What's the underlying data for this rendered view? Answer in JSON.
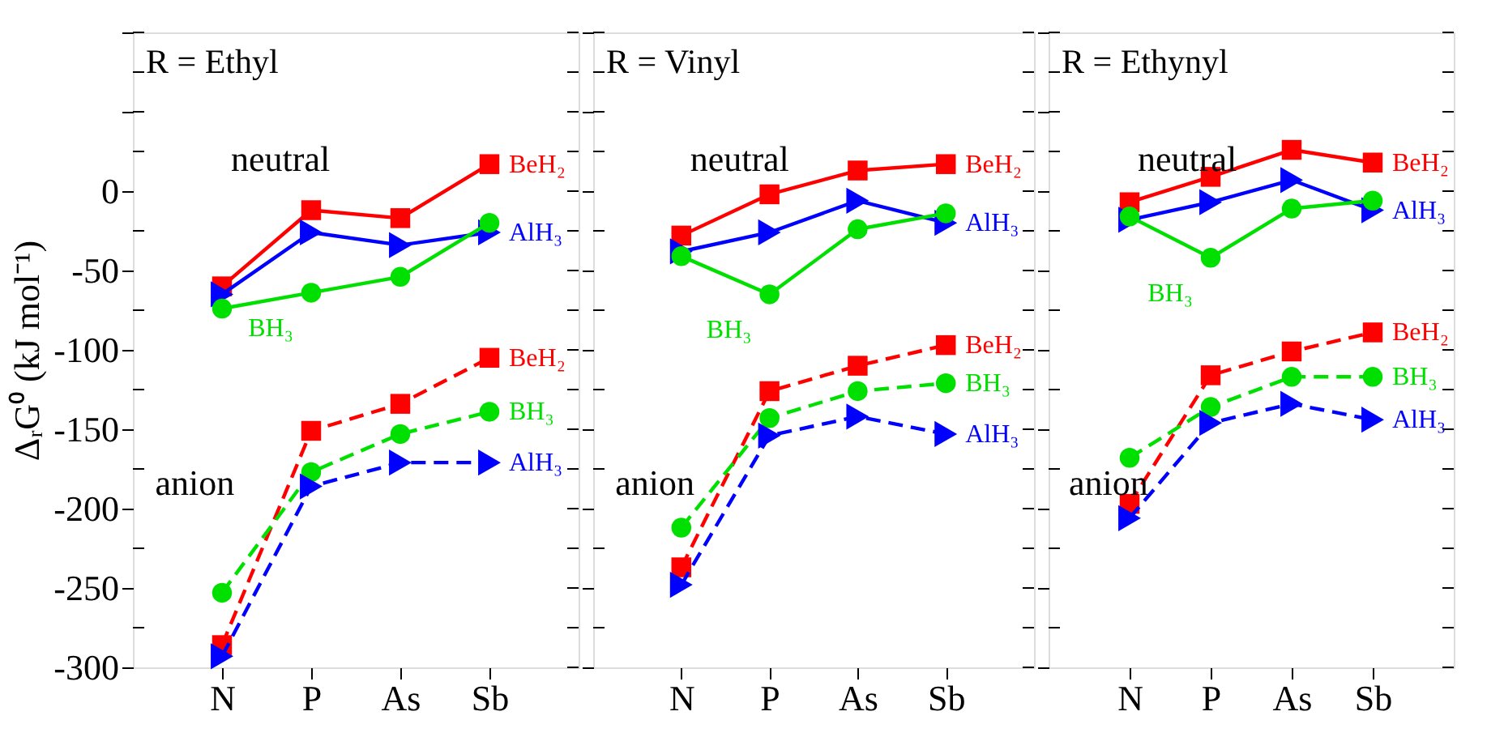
{
  "chart_data": [
    {
      "type": "line",
      "title": "R = Ethyl",
      "ylabel": "ΔᵣG⁰ (kJ mol⁻¹)",
      "categories": [
        "N",
        "P",
        "As",
        "Sb"
      ],
      "ylim": [
        -300,
        100
      ],
      "yticks": [
        -300,
        {
          "value": -275,
          "label": null
        },
        -250,
        {
          "value": -225,
          "label": null
        },
        -200,
        {
          "value": -175,
          "label": null
        },
        -150,
        {
          "value": -125,
          "label": null
        },
        -100,
        {
          "value": -75,
          "label": null
        },
        -50,
        {
          "value": -25,
          "label": null
        },
        0,
        {
          "value": 25,
          "label": null
        },
        {
          "value": 50,
          "label": null
        },
        {
          "value": 75,
          "label": null
        },
        {
          "value": 100,
          "label": null
        }
      ],
      "grid": false,
      "annotations": [
        "neutral",
        "anion"
      ],
      "series": [
        {
          "name": "BeH₂",
          "color": "#ff0000",
          "marker": "square",
          "line_style": "solid",
          "values": [
            -60,
            -12,
            -17,
            17
          ]
        },
        {
          "name": "AlH₃",
          "color": "#0000ff",
          "marker": "triangle",
          "line_style": "solid",
          "values": [
            -65,
            -26,
            -34,
            -26
          ]
        },
        {
          "name": "BH₃",
          "color": "#00e000",
          "marker": "circle",
          "line_style": "solid",
          "values": [
            -74,
            -64,
            -54,
            -20
          ]
        },
        {
          "name": "BeH₂",
          "color": "#ff0000",
          "marker": "square",
          "line_style": "dashed",
          "values": [
            -286,
            -151,
            -134,
            -105
          ]
        },
        {
          "name": "BH₃",
          "color": "#00e000",
          "marker": "circle",
          "line_style": "dashed",
          "values": [
            -253,
            -177,
            -153,
            -139
          ]
        },
        {
          "name": "AlH₃",
          "color": "#0000ff",
          "marker": "triangle",
          "line_style": "dashed",
          "values": [
            -293,
            -186,
            -171,
            -171
          ]
        }
      ]
    },
    {
      "type": "line",
      "title": "R = Vinyl",
      "categories": [
        "N",
        "P",
        "As",
        "Sb"
      ],
      "ylim": [
        -300,
        100
      ],
      "yticks": [
        -300,
        {
          "value": -275,
          "label": null
        },
        -250,
        {
          "value": -225,
          "label": null
        },
        -200,
        {
          "value": -175,
          "label": null
        },
        -150,
        {
          "value": -125,
          "label": null
        },
        -100,
        {
          "value": -75,
          "label": null
        },
        -50,
        {
          "value": -25,
          "label": null
        },
        0,
        {
          "value": 25,
          "label": null
        },
        {
          "value": 50,
          "label": null
        },
        {
          "value": 75,
          "label": null
        },
        {
          "value": 100,
          "label": null
        }
      ],
      "grid": false,
      "tick_labels": "x",
      "annotations": [
        "neutral",
        "anion"
      ],
      "series": [
        {
          "name": "BeH₂",
          "color": "#ff0000",
          "marker": "square",
          "line_style": "solid",
          "values": [
            -28,
            -2,
            13,
            17
          ]
        },
        {
          "name": "AlH₃",
          "color": "#0000ff",
          "marker": "triangle",
          "line_style": "solid",
          "values": [
            -38,
            -26,
            -6,
            -20
          ]
        },
        {
          "name": "BH₃",
          "color": "#00e000",
          "marker": "circle",
          "line_style": "solid",
          "values": [
            -41,
            -65,
            -24,
            -14
          ]
        },
        {
          "name": "BeH₂",
          "color": "#ff0000",
          "marker": "square",
          "line_style": "dashed",
          "values": [
            -237,
            -126,
            -110,
            -97
          ]
        },
        {
          "name": "BH₃",
          "color": "#00e000",
          "marker": "circle",
          "line_style": "dashed",
          "values": [
            -212,
            -143,
            -126,
            -121
          ]
        },
        {
          "name": "AlH₃",
          "color": "#0000ff",
          "marker": "triangle",
          "line_style": "dashed",
          "values": [
            -248,
            -154,
            -142,
            -153
          ]
        }
      ]
    },
    {
      "type": "line",
      "title": "R = Ethynyl",
      "categories": [
        "N",
        "P",
        "As",
        "Sb"
      ],
      "ylim": [
        -300,
        100
      ],
      "yticks": [
        -300,
        {
          "value": -275,
          "label": null
        },
        -250,
        {
          "value": -225,
          "label": null
        },
        -200,
        {
          "value": -175,
          "label": null
        },
        -150,
        {
          "value": -125,
          "label": null
        },
        -100,
        {
          "value": -75,
          "label": null
        },
        -50,
        {
          "value": -25,
          "label": null
        },
        0,
        {
          "value": 25,
          "label": null
        },
        {
          "value": 50,
          "label": null
        },
        {
          "value": 75,
          "label": null
        },
        {
          "value": 100,
          "label": null
        }
      ],
      "grid": false,
      "tick_labels": "x",
      "annotations": [
        "neutral",
        "anion"
      ],
      "series": [
        {
          "name": "BeH₂",
          "color": "#ff0000",
          "marker": "square",
          "line_style": "solid",
          "values": [
            -7,
            9,
            26,
            18
          ]
        },
        {
          "name": "AlH₃",
          "color": "#0000ff",
          "marker": "triangle",
          "line_style": "solid",
          "values": [
            -18,
            -7,
            7,
            -12
          ]
        },
        {
          "name": "BH₃",
          "color": "#00e000",
          "marker": "circle",
          "line_style": "solid",
          "values": [
            -16,
            -42,
            -11,
            -6
          ]
        },
        {
          "name": "BeH₂",
          "color": "#ff0000",
          "marker": "square",
          "line_style": "dashed",
          "values": [
            -197,
            -116,
            -101,
            -89
          ]
        },
        {
          "name": "BH₃",
          "color": "#00e000",
          "marker": "circle",
          "line_style": "dashed",
          "values": [
            -168,
            -136,
            -117,
            -117
          ]
        },
        {
          "name": "AlH₃",
          "color": "#0000ff",
          "marker": "triangle",
          "line_style": "dashed",
          "values": [
            -206,
            -146,
            -134,
            -144
          ]
        }
      ]
    }
  ]
}
